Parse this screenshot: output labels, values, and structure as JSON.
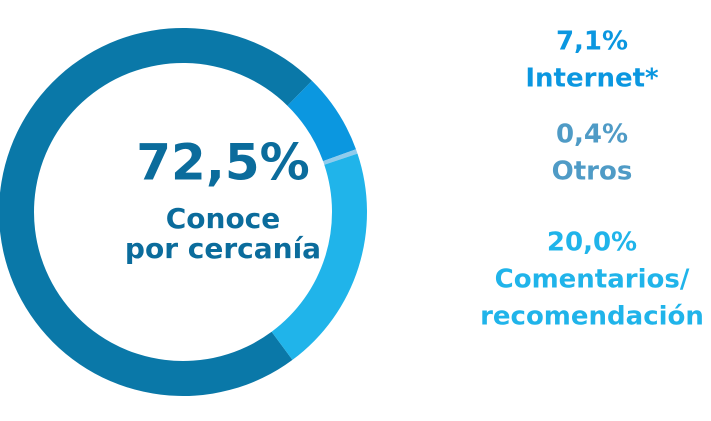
{
  "chart_data": {
    "type": "donut",
    "categories": [
      [
        "Conoce",
        "por cercanía"
      ],
      [
        "Internet*"
      ],
      [
        "Otros"
      ],
      [
        "Comentarios/",
        "recomendación"
      ]
    ],
    "values": [
      72.5,
      7.1,
      0.4,
      20.0
    ],
    "value_labels": [
      "72,5%",
      "7,1%",
      "0,4%",
      "20,0%"
    ],
    "colors": [
      "#0a78a8",
      "#0b97e0",
      "#8fcbec",
      "#20b4ea"
    ],
    "label_colors": [
      "#0b6c9c",
      "#0b97e0",
      "#4f9bc6",
      "#20b4ea"
    ]
  }
}
